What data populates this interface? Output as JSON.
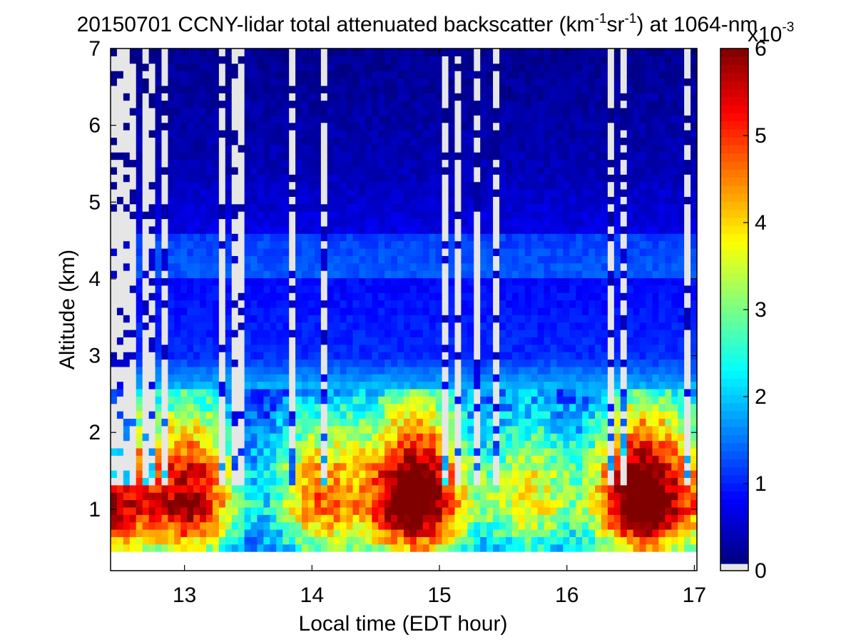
{
  "chart_data": {
    "type": "heatmap",
    "title_main": "20150701 CCNY-lidar total attenuated backscatter (km",
    "title_sup1": "-1",
    "title_mid": "sr",
    "title_sup2": "-1",
    "title_end": ") at 1064-nm",
    "xlabel": "Local time (EDT hour)",
    "ylabel": "Altitude (km)",
    "xlim": [
      12.42,
      17.02
    ],
    "ylim": [
      0.2,
      7.0
    ],
    "xticks": [
      13,
      14,
      15,
      16,
      17
    ],
    "yticks": [
      1,
      2,
      3,
      4,
      5,
      6,
      7
    ],
    "colorbar": {
      "clim": [
        0,
        6
      ],
      "ticks": [
        0,
        1,
        2,
        3,
        4,
        5,
        6
      ],
      "multiplier_base": "x10",
      "multiplier_exp": "-3",
      "colormap": "jet",
      "below_min_color": "#e6e6e6"
    },
    "data_floor_km": 0.45,
    "gap_columns_hour": [
      12.47,
      12.53,
      12.6,
      12.72,
      12.84,
      13.3,
      13.42,
      13.83,
      14.1,
      15.05,
      15.15,
      15.3,
      15.45,
      16.35,
      16.45,
      16.95
    ],
    "profile_model": [
      {
        "altitude_km": 0.5,
        "value": 2.8
      },
      {
        "altitude_km": 0.7,
        "value": 3.6
      },
      {
        "altitude_km": 1.0,
        "value": 4.6
      },
      {
        "altitude_km": 1.5,
        "value": 4.2
      },
      {
        "altitude_km": 2.0,
        "value": 3.0
      },
      {
        "altitude_km": 2.5,
        "value": 2.0
      },
      {
        "altitude_km": 3.0,
        "value": 1.0
      },
      {
        "altitude_km": 4.3,
        "value": 0.7
      },
      {
        "altitude_km": 5.5,
        "value": 0.3
      },
      {
        "altitude_km": 7.0,
        "value": 0.1
      }
    ]
  }
}
